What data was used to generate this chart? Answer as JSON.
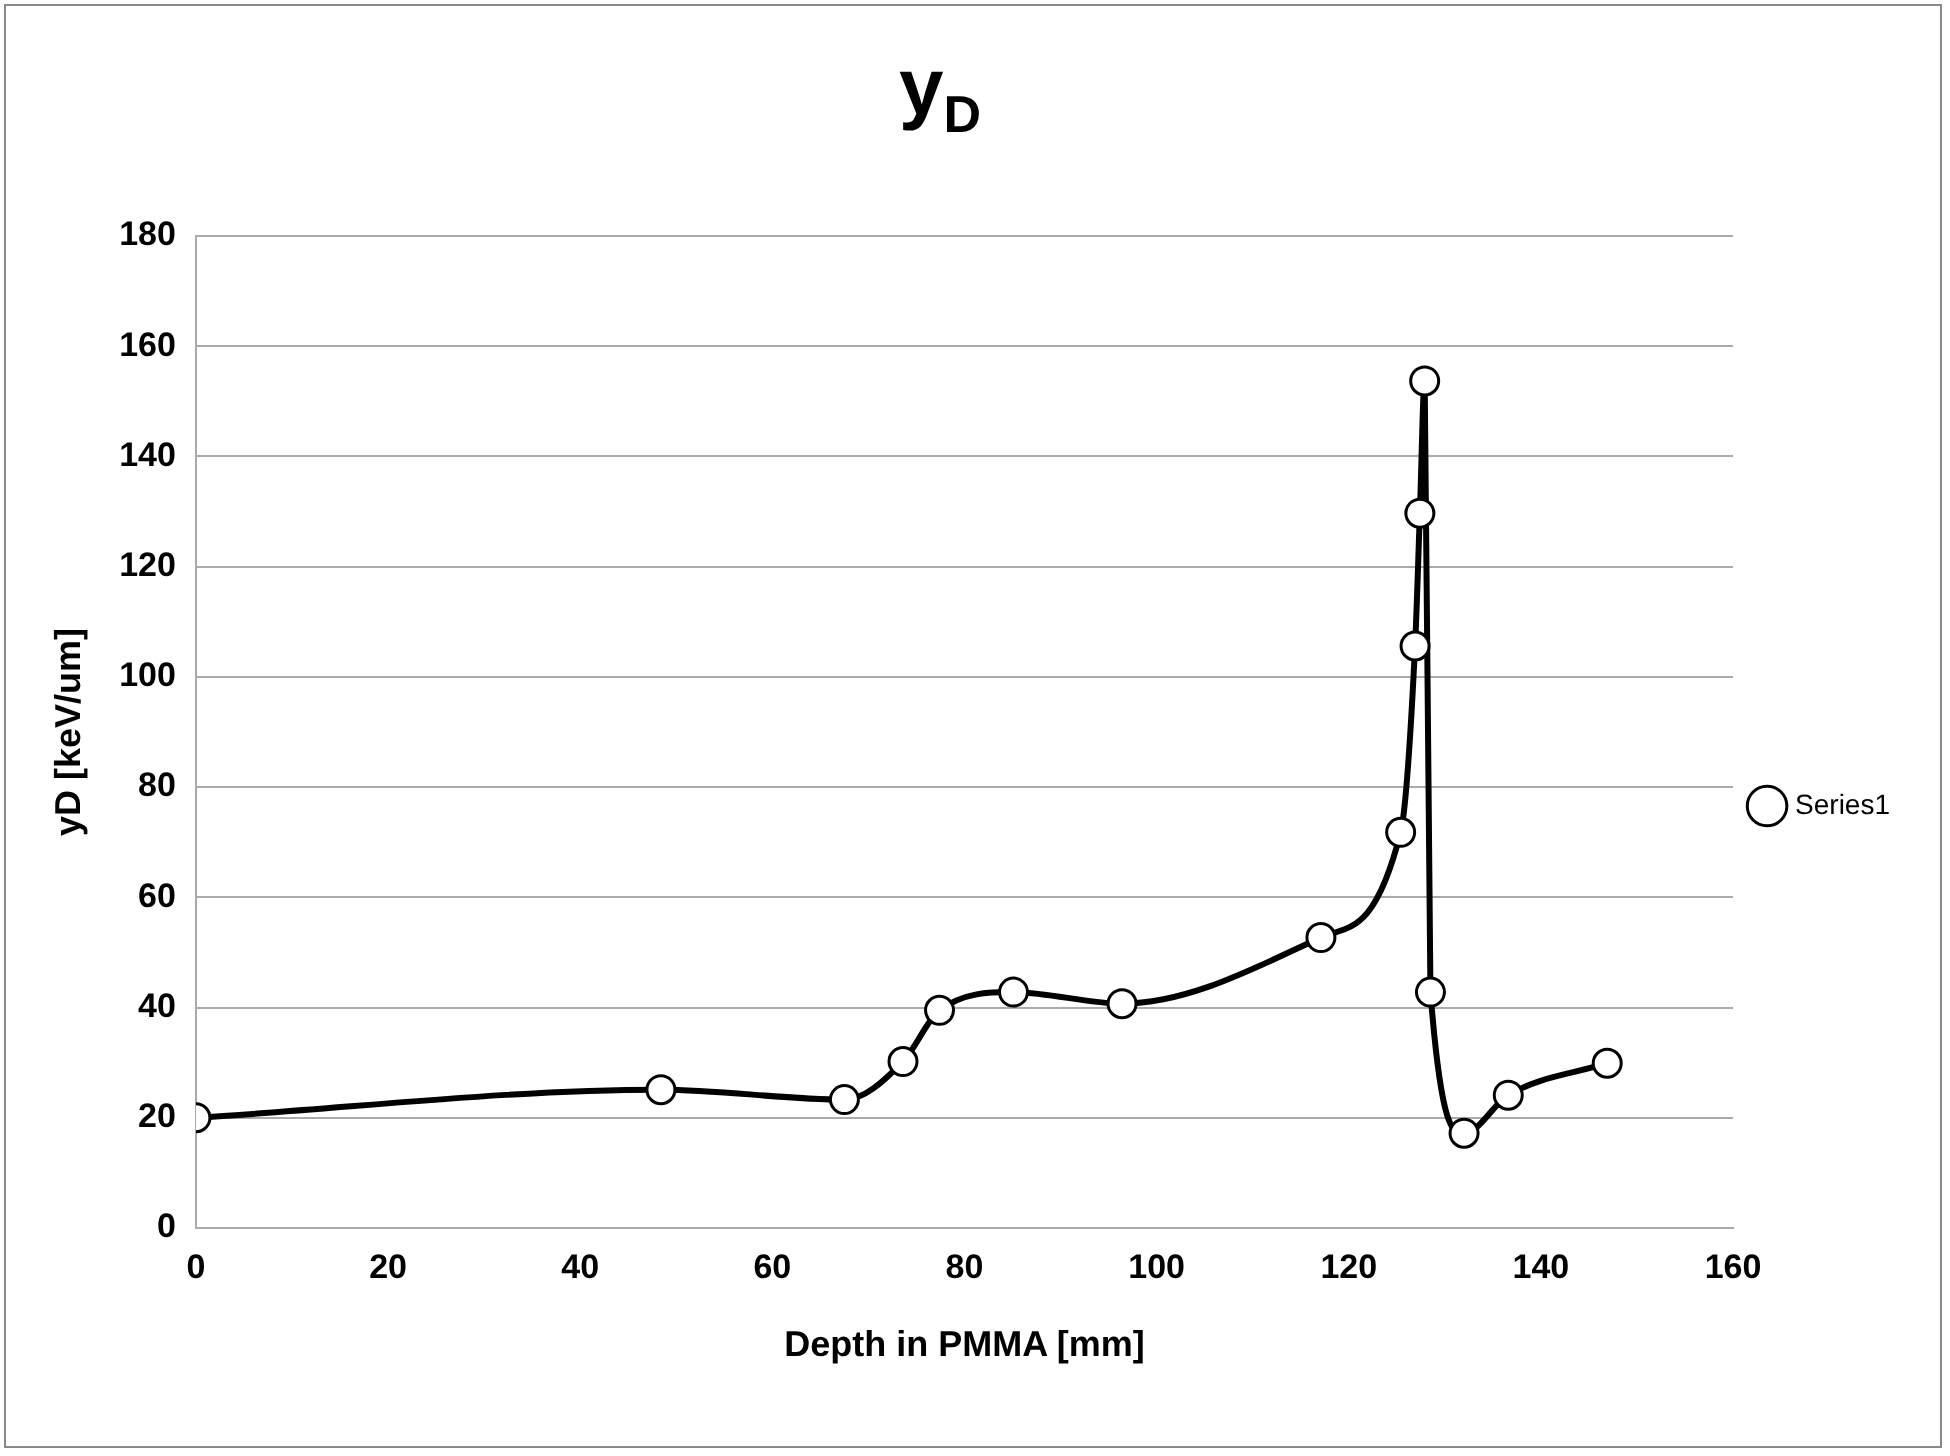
{
  "chart_data": {
    "type": "line",
    "title": "y$_{D}$",
    "xlabel": "Depth in PMMA [mm]",
    "ylabel": "yD [keV/um]",
    "series": [
      {
        "name": "Series1",
        "color": "#000000",
        "x": [
          0,
          48.4,
          67.5,
          73.6,
          77.4,
          85.1,
          96.4,
          117.1,
          125.4,
          126.9,
          127.4,
          127.9,
          128.5,
          132.0,
          136.6,
          146.9
        ],
        "values": [
          20,
          25.1,
          23.3,
          30.2,
          39.5,
          42.8,
          40.7,
          52.7,
          71.8,
          105.6,
          129.7,
          153.7,
          42.8,
          17.2,
          24.1,
          29.9
        ]
      }
    ],
    "xlim": [
      0,
      160
    ],
    "xticks": [
      0,
      20,
      40,
      60,
      80,
      100,
      120,
      140,
      160
    ],
    "ylim": [
      0,
      180
    ],
    "yticks": [
      0,
      20,
      40,
      60,
      80,
      100,
      120,
      140,
      160,
      180
    ],
    "grid": "y",
    "legend": "right",
    "marker": "circle",
    "line_style": "solid"
  }
}
